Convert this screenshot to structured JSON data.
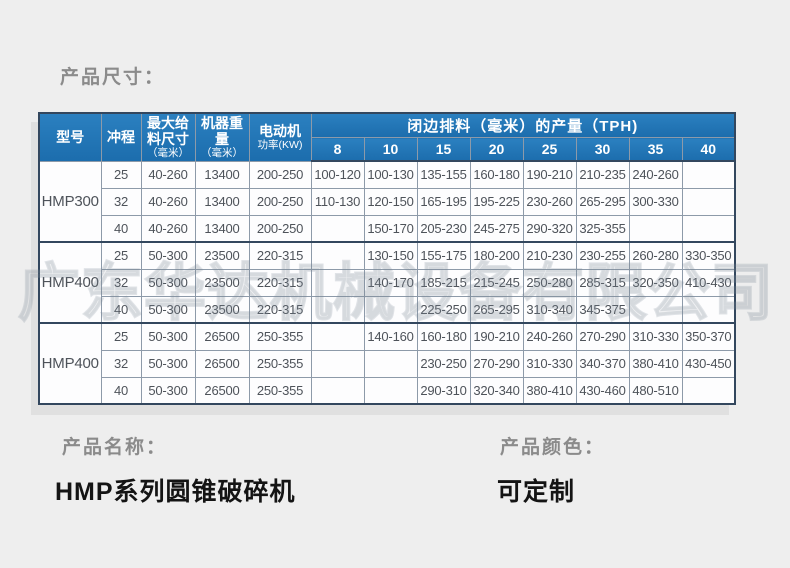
{
  "page": {
    "title": "产品尺寸："
  },
  "table": {
    "headers": {
      "model": "型号",
      "stroke": "冲程",
      "max_feed_main": "最大给\n料尺寸",
      "max_feed_sub": "（毫米）",
      "weight_main": "机器重量",
      "weight_sub": "（毫米）",
      "motor_main": "电动机",
      "motor_sub": "功率(KW)",
      "tph_span": "闭边排料（毫米）的产量（TPH)",
      "tph_cols": [
        "8",
        "10",
        "15",
        "20",
        "25",
        "30",
        "35",
        "40"
      ]
    },
    "groups": [
      {
        "model": "HMP300",
        "rows": [
          {
            "stroke": "25",
            "feed": "40-260",
            "weight": "13400",
            "motor": "200-250",
            "tph": [
              "100-120",
              "100-130",
              "135-155",
              "160-180",
              "190-210",
              "210-235",
              "240-260",
              ""
            ]
          },
          {
            "stroke": "32",
            "feed": "40-260",
            "weight": "13400",
            "motor": "200-250",
            "tph": [
              "110-130",
              "120-150",
              "165-195",
              "195-225",
              "230-260",
              "265-295",
              "300-330",
              ""
            ]
          },
          {
            "stroke": "40",
            "feed": "40-260",
            "weight": "13400",
            "motor": "200-250",
            "tph": [
              "",
              "150-170",
              "205-230",
              "245-275",
              "290-320",
              "325-355",
              "",
              ""
            ]
          }
        ]
      },
      {
        "model": "HMP400",
        "rows": [
          {
            "stroke": "25",
            "feed": "50-300",
            "weight": "23500",
            "motor": "220-315",
            "tph": [
              "",
              "130-150",
              "155-175",
              "180-200",
              "210-230",
              "230-255",
              "260-280",
              "330-350"
            ]
          },
          {
            "stroke": "32",
            "feed": "50-300",
            "weight": "23500",
            "motor": "220-315",
            "tph": [
              "",
              "140-170",
              "185-215",
              "215-245",
              "250-280",
              "285-315",
              "320-350",
              "410-430"
            ]
          },
          {
            "stroke": "40",
            "feed": "50-300",
            "weight": "23500",
            "motor": "220-315",
            "tph": [
              "",
              "",
              "225-250",
              "265-295",
              "310-340",
              "345-375",
              "",
              ""
            ]
          }
        ]
      },
      {
        "model": "HMP400",
        "rows": [
          {
            "stroke": "25",
            "feed": "50-300",
            "weight": "26500",
            "motor": "250-355",
            "tph": [
              "",
              "140-160",
              "160-180",
              "190-210",
              "240-260",
              "270-290",
              "310-330",
              "350-370"
            ]
          },
          {
            "stroke": "32",
            "feed": "50-300",
            "weight": "26500",
            "motor": "250-355",
            "tph": [
              "",
              "",
              "230-250",
              "270-290",
              "310-330",
              "340-370",
              "380-410",
              "430-450"
            ]
          },
          {
            "stroke": "40",
            "feed": "50-300",
            "weight": "26500",
            "motor": "250-355",
            "tph": [
              "",
              "",
              "290-310",
              "320-340",
              "380-410",
              "430-460",
              "480-510",
              ""
            ]
          }
        ]
      }
    ]
  },
  "watermark": "广东华达机械设备有限公司",
  "footer": {
    "name_label": "产品名称：",
    "name_value": "HMP系列圆锥破碎机",
    "color_label": "产品颜色：",
    "color_value": "可定制"
  },
  "colors": {
    "header_blue": "#1e73b2",
    "header_blue_light": "#2b80c0",
    "border_dark": "#33475e",
    "border_light": "#8d9aa9",
    "label_gray": "#8b8b8b",
    "text_dark": "#141414",
    "cell_text": "#4e535a",
    "background": "#eeeeee"
  }
}
